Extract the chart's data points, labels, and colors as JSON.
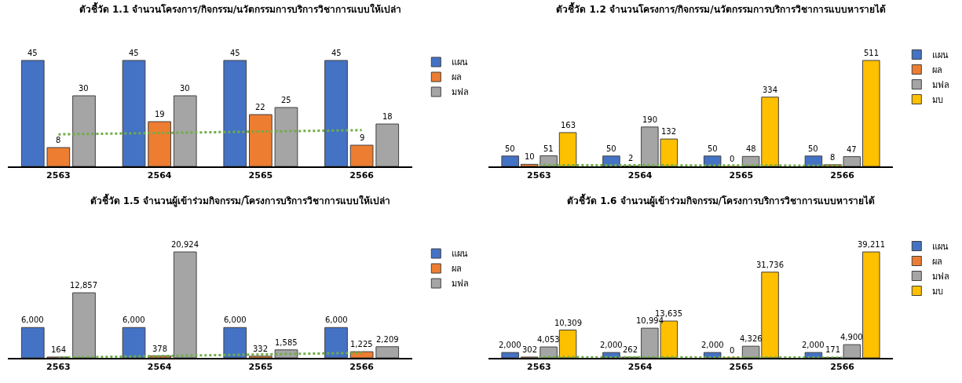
{
  "chart_data": [
    {
      "type": "bar",
      "title": "ตัวชี้วัด 1.1 จำนวนโครงการ/กิจกรรม/นวัตกรรมการบริการวิชาการแบบให้เปล่า",
      "categories": [
        "2563",
        "2564",
        "2565",
        "2566"
      ],
      "legend": "right",
      "tick_labels": "x",
      "grid": false,
      "series": [
        {
          "name": "แผน",
          "color": "#4472c4",
          "values": [
            45,
            45,
            45,
            45
          ],
          "value_labels": [
            "45",
            "45",
            "45",
            "45"
          ]
        },
        {
          "name": "ผล",
          "color": "#ed7d31",
          "values": [
            8,
            19,
            22,
            9
          ],
          "value_labels": [
            "8",
            "19",
            "22",
            "9"
          ]
        },
        {
          "name": "มฟล",
          "color": "#a5a5a5",
          "values": [
            30,
            30,
            25,
            18
          ],
          "value_labels": [
            "30",
            "30",
            "25",
            "18"
          ]
        },
        {
          "type": "line",
          "color": "#70ad47",
          "line_style": "dotted",
          "values": [
            13.6,
            14.2,
            14.8,
            15.4
          ]
        }
      ]
    },
    {
      "type": "bar",
      "title": "ตัวชี้วัด 1.2 จำนวนโครงการ/กิจกรรม/นวัตกรรมการบริการวิชาการแบบหารายได้",
      "categories": [
        "2563",
        "2564",
        "2565",
        "2566"
      ],
      "legend": "right",
      "tick_labels": "x",
      "grid": false,
      "series": [
        {
          "name": "แผน",
          "color": "#4472c4",
          "values": [
            50,
            50,
            50,
            50
          ],
          "value_labels": [
            "50",
            "50",
            "50",
            "50"
          ]
        },
        {
          "name": "ผล",
          "color": "#ed7d31",
          "values": [
            10,
            2,
            0,
            8
          ],
          "value_labels": [
            "10",
            "2",
            "0",
            "8"
          ]
        },
        {
          "name": "มฟล",
          "color": "#a5a5a5",
          "values": [
            51,
            190,
            48,
            47
          ],
          "value_labels": [
            "51",
            "190",
            "48",
            "47"
          ]
        },
        {
          "name": "มบ",
          "color": "#ffc000",
          "values": [
            163,
            132,
            334,
            511
          ],
          "value_labels": [
            "163",
            "132",
            "334",
            "511"
          ]
        },
        {
          "type": "line",
          "color": "#70ad47",
          "line_style": "dotted",
          "values": [
            6.2,
            5.4,
            4.6,
            3.8
          ]
        }
      ]
    },
    {
      "type": "bar",
      "title": "ตัวชี้วัด 1.5 จำนวนผู้เข้าร่วมกิจกรรม/โครงการบริการวิชาการแบบให้เปล่า",
      "categories": [
        "2563",
        "2564",
        "2565",
        "2566"
      ],
      "legend": "right",
      "tick_labels": "x",
      "grid": false,
      "series": [
        {
          "name": "แผน",
          "color": "#4472c4",
          "values": [
            6000,
            6000,
            6000,
            6000
          ],
          "value_labels": [
            "6,000",
            "6,000",
            "6,000",
            "6,000"
          ]
        },
        {
          "name": "ผล",
          "color": "#ed7d31",
          "values": [
            164,
            378,
            332,
            1225
          ],
          "value_labels": [
            "164",
            "378",
            "332",
            "1,225"
          ]
        },
        {
          "name": "มฟล",
          "color": "#a5a5a5",
          "values": [
            12857,
            20924,
            1585,
            2209
          ],
          "value_labels": [
            "12,857",
            "20,924",
            "1,585",
            "2,209"
          ]
        },
        {
          "type": "line",
          "color": "#70ad47",
          "line_style": "dotted",
          "values": [
            54,
            368,
            682,
            995
          ]
        }
      ]
    },
    {
      "type": "bar",
      "title": "ตัวชี้วัด 1.6 จำนวนผู้เข้าร่วมกิจกรรม/โครงการบริการวิชาการแบบหารายได้",
      "categories": [
        "2563",
        "2564",
        "2565",
        "2566"
      ],
      "legend": "right",
      "tick_labels": "x",
      "grid": false,
      "series": [
        {
          "name": "แผน",
          "color": "#4472c4",
          "values": [
            2000,
            2000,
            2000,
            2000
          ],
          "value_labels": [
            "2,000",
            "2,000",
            "2,000",
            "2,000"
          ]
        },
        {
          "name": "ผล",
          "color": "#ed7d31",
          "values": [
            302,
            262,
            0,
            171
          ],
          "value_labels": [
            "302",
            "262",
            "0",
            "171"
          ]
        },
        {
          "name": "มฟล",
          "color": "#a5a5a5",
          "values": [
            4053,
            10994,
            4326,
            4900
          ],
          "value_labels": [
            "4,053",
            "10,994",
            "4,326",
            "4,900"
          ]
        },
        {
          "name": "มบ",
          "color": "#ffc000",
          "values": [
            10309,
            13635,
            31736,
            39211
          ],
          "value_labels": [
            "10,309",
            "13,635",
            "31,736",
            "39,211"
          ]
        },
        {
          "type": "line",
          "color": "#70ad47",
          "line_style": "dotted",
          "values": [
            282,
            217,
            151,
            86
          ]
        }
      ]
    }
  ]
}
